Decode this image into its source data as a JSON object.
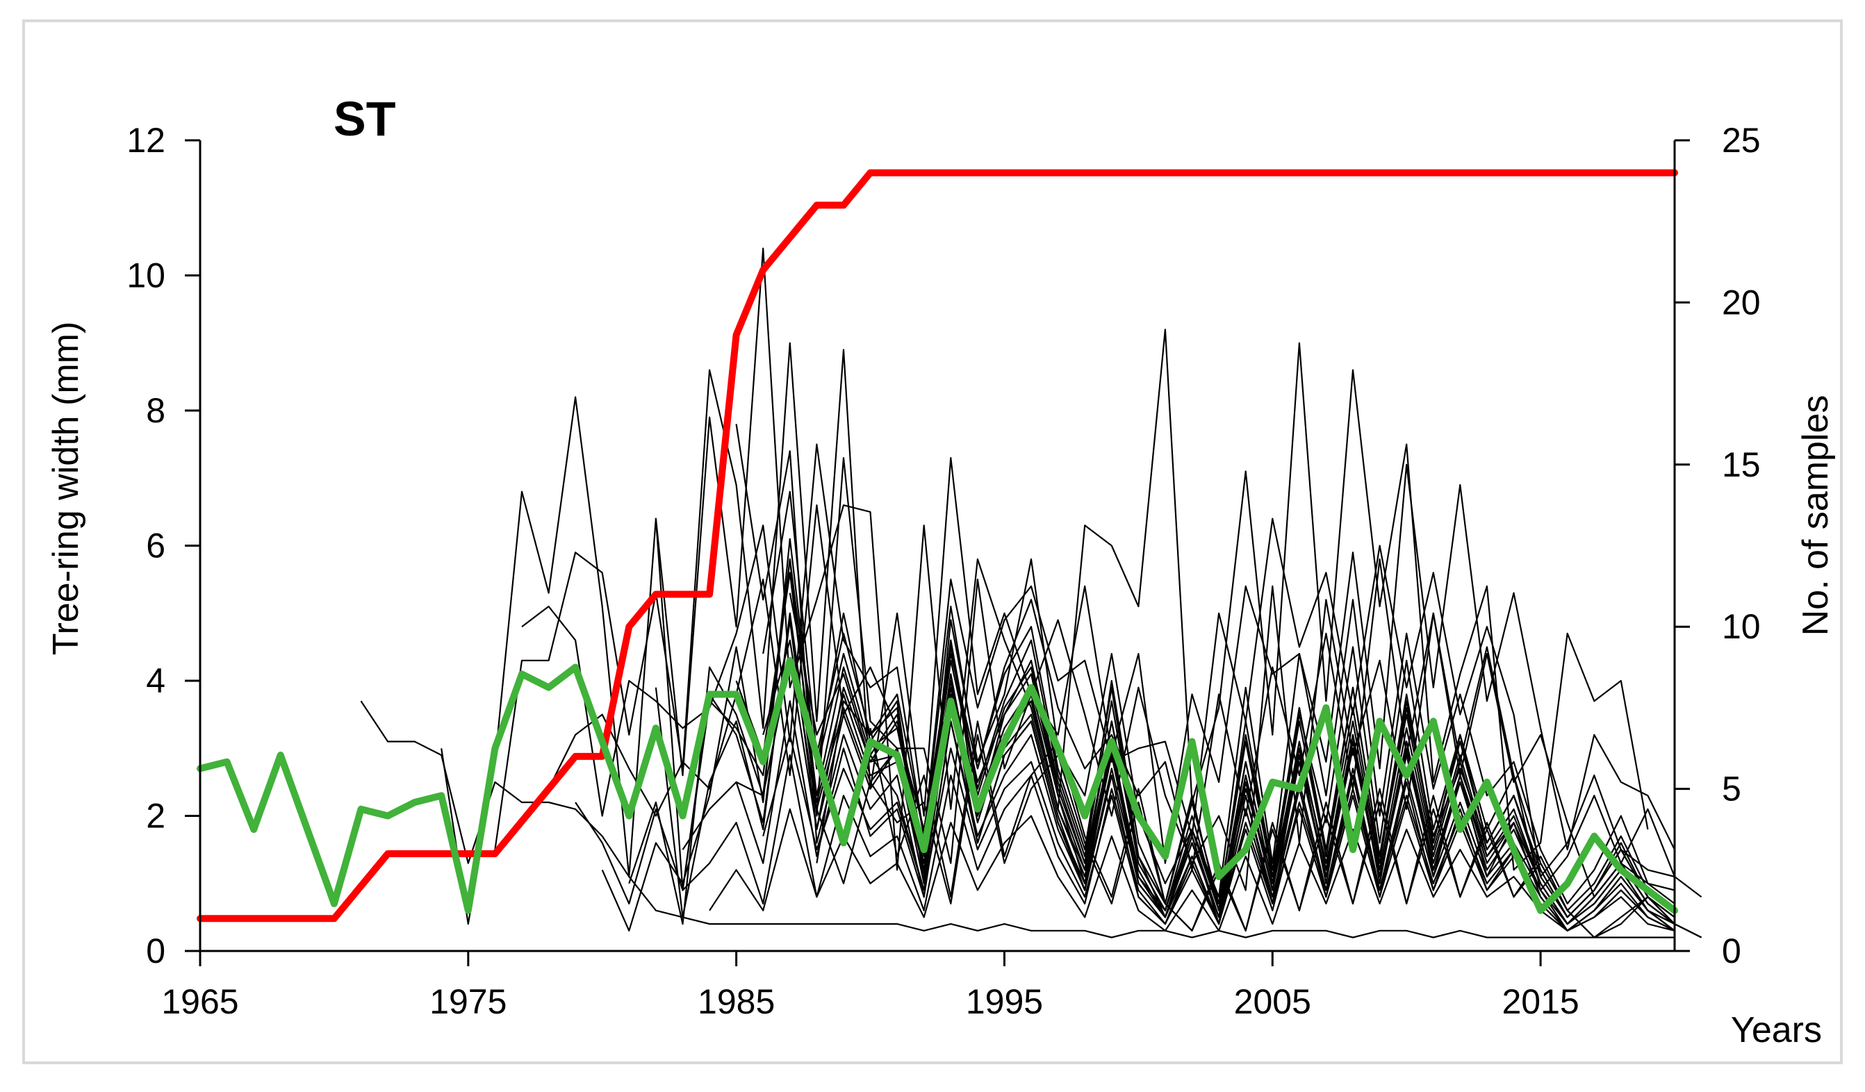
{
  "chart_data": {
    "type": "line",
    "title": "ST",
    "xlabel": "Years",
    "ylabel": "Tree-ring width (mm)",
    "y2label": "No. of samples",
    "xlim": [
      1965,
      2020
    ],
    "ylim": [
      0,
      12
    ],
    "y2lim": [
      0,
      25
    ],
    "x_ticks": [
      1965,
      1975,
      1985,
      1995,
      2005,
      2015
    ],
    "y_ticks": [
      0,
      2,
      4,
      6,
      8,
      10,
      12
    ],
    "y2_ticks": [
      0,
      5,
      10,
      15,
      20,
      25
    ],
    "grid": false,
    "legend": "none",
    "colors": {
      "individual": "#000000",
      "mean": "#41b23a",
      "sample_depth": "#ff0000"
    },
    "series": [
      {
        "role": "sample_depth",
        "axis": "right",
        "start": 1965,
        "values": [
          1,
          1,
          1,
          1,
          1,
          1,
          2,
          3,
          3,
          3,
          3,
          3,
          4,
          5,
          6,
          6,
          10,
          11,
          11,
          11,
          19,
          21,
          22,
          23,
          23,
          24,
          24,
          24,
          24,
          24,
          24,
          24,
          24,
          24,
          24,
          24,
          24,
          24,
          24,
          24,
          24,
          24,
          24,
          24,
          24,
          24,
          24,
          24,
          24,
          24,
          24,
          24,
          24,
          24,
          24,
          24
        ]
      },
      {
        "role": "mean",
        "axis": "left",
        "start": 1965,
        "values": [
          2.7,
          2.8,
          1.8,
          2.9,
          1.8,
          0.7,
          2.1,
          2.0,
          2.2,
          2.3,
          0.6,
          3.0,
          4.1,
          3.9,
          4.2,
          3.1,
          2.0,
          3.3,
          2.0,
          3.8,
          3.8,
          2.8,
          4.3,
          2.9,
          1.6,
          3.1,
          2.9,
          1.5,
          3.7,
          2.1,
          3.1,
          3.9,
          3.0,
          2.0,
          3.1,
          2.0,
          1.4,
          3.1,
          1.1,
          1.5,
          2.5,
          2.4,
          3.6,
          1.5,
          3.4,
          2.6,
          3.4,
          1.8,
          2.5,
          1.5,
          0.6,
          1.0,
          1.7,
          1.2,
          0.9,
          0.6
        ]
      }
    ],
    "individual_series": [
      {
        "start": 1971,
        "values": [
          3.7,
          3.1,
          3.1,
          2.9,
          1.3,
          2.5,
          2.2,
          2.2,
          2.1,
          1.7,
          1.1,
          0.6,
          0.5,
          0.4,
          0.4,
          0.4,
          0.4,
          0.4,
          0.4,
          0.4,
          0.4,
          0.3,
          0.4,
          0.3,
          0.4,
          0.3,
          0.3,
          0.3,
          0.2,
          0.3,
          0.3,
          0.2,
          0.3,
          0.2,
          0.3,
          0.3,
          0.3,
          0.2,
          0.3,
          0.3,
          0.2,
          0.3,
          0.2,
          0.2,
          0.2,
          0.2,
          0.2,
          0.2,
          0.2,
          0.2
        ]
      },
      {
        "start": 1974,
        "values": [
          3.0,
          0.4,
          2.8,
          6.8,
          5.3,
          8.2,
          5.1,
          1.1,
          6.4,
          2.6,
          7.9,
          4.8,
          10.4,
          3.9,
          5.2,
          6.6,
          6.5,
          1.2,
          6.3,
          2.1,
          5.8,
          4.6,
          3.6,
          2.1,
          6.3,
          6.0,
          5.1,
          9.2,
          2.2,
          3.6,
          7.1,
          3.2,
          9.0,
          3.7,
          8.6,
          5.1,
          7.5,
          2.5,
          4.1,
          5.4,
          1.2,
          1.6,
          4.7,
          3.7,
          4.0,
          1.8
        ]
      },
      {
        "start": 1976,
        "values": [
          1.5,
          4.3,
          4.3,
          5.9,
          5.6,
          3.2,
          5.3,
          2.7,
          8.6,
          6.9,
          3.3,
          9.0,
          3.4,
          8.9,
          2.4,
          5.0,
          2.0,
          7.3,
          3.8,
          5.0,
          3.8,
          3.2,
          5.4,
          2.9,
          4.4,
          1.3,
          3.8,
          2.5,
          5.4,
          4.1,
          4.4,
          2.8,
          5.9,
          2.7,
          7.2,
          3.9,
          6.9,
          3.7,
          5.3,
          3.3,
          1.5,
          3.2,
          2.5,
          2.3,
          1.5
        ]
      },
      {
        "start": 1977,
        "values": [
          4.8,
          5.1,
          4.6,
          2.0,
          4.0,
          3.7,
          3.3,
          3.6,
          4.7,
          6.3,
          3.1,
          7.5,
          4.6,
          3.9,
          4.2,
          1.7,
          5.5,
          3.6,
          4.9,
          5.4,
          4.0,
          4.3,
          2.8,
          3.0,
          3.1,
          1.7,
          5.0,
          3.4,
          6.4,
          4.5,
          5.6,
          3.5,
          6.0,
          3.9,
          5.6,
          3.5,
          4.8,
          3.5,
          1.1,
          1.6,
          2.6,
          1.5,
          1.2,
          1.1
        ]
      },
      {
        "start": 1978,
        "values": [
          2.4,
          3.2,
          3.5,
          2.7,
          2.0,
          2.8,
          2.4,
          3.8,
          5.5,
          2.6,
          6.6,
          3.5,
          4.2,
          3.3,
          1.8,
          4.4,
          2.7,
          4.2,
          5.2,
          3.6,
          2.7,
          3.2,
          2.3,
          2.8,
          1.2,
          3.8,
          2.0,
          4.2,
          2.6,
          4.7,
          2.4,
          5.8,
          2.9,
          5.0,
          2.8,
          4.5,
          2.6,
          0.9,
          1.4,
          2.3,
          1.3,
          1.0,
          0.9
        ]
      },
      {
        "start": 1979,
        "values": [
          2.2,
          1.6,
          0.7,
          2.1,
          0.9,
          3.7,
          3.3,
          2.6,
          5.8,
          2.0,
          7.3,
          3.4,
          3.0,
          3.0,
          1.3,
          5.5,
          2.7,
          3.8,
          4.9,
          3.5,
          2.0,
          3.9,
          2.3,
          1.3,
          2.0,
          0.9,
          5.4,
          1.6,
          5.2,
          2.9,
          4.3,
          2.1,
          5.0,
          2.6,
          4.4,
          2.5,
          3.2,
          1.9,
          0.8,
          1.3,
          2.1,
          1.1,
          0.8
        ]
      },
      {
        "start": 1980,
        "values": [
          1.2,
          0.3,
          1.6,
          1.0,
          2.3,
          4.5,
          2.2,
          6.1,
          2.7,
          5.0,
          3.1,
          3.7,
          1.0,
          4.9,
          2.8,
          3.8,
          5.8,
          3.0,
          2.3,
          4.4,
          2.0,
          1.0,
          1.8,
          0.8,
          3.9,
          1.3,
          4.4,
          2.3,
          5.2,
          2.0,
          4.7,
          2.4,
          3.8,
          2.3,
          2.8,
          1.5,
          0.7,
          1.2,
          2.0,
          1.0,
          0.7
        ]
      },
      {
        "start": 1981,
        "values": [
          1.0,
          2.2,
          0.4,
          4.2,
          3.5,
          2.3,
          5.8,
          2.7,
          4.4,
          3.0,
          3.3,
          1.4,
          4.3,
          2.5,
          3.5,
          4.3,
          2.5,
          1.3,
          4.0,
          1.6,
          0.7,
          2.3,
          0.6,
          3.4,
          1.2,
          3.5,
          1.9,
          4.5,
          1.6,
          4.3,
          1.8,
          3.2,
          1.8,
          2.6,
          1.3,
          0.6,
          1.0,
          1.7,
          0.9,
          0.6
        ]
      },
      {
        "start": 1982,
        "values": [
          6.4,
          0.9,
          3.8,
          3.2,
          1.9,
          4.9,
          1.8,
          3.9,
          2.8,
          2.9,
          1.0,
          3.8,
          2.2,
          3.3,
          3.9,
          2.3,
          1.2,
          3.4,
          1.4,
          0.5,
          1.6,
          0.5,
          2.8,
          1.0,
          3.6,
          1.5,
          3.9,
          1.4,
          3.6,
          1.7,
          2.7,
          1.6,
          2.3,
          1.1,
          0.5,
          0.9,
          1.5,
          0.8,
          0.5
        ]
      },
      {
        "start": 1982,
        "values": [
          3.9,
          0.5,
          2.5,
          3.4,
          1.8,
          5.0,
          2.2,
          3.8,
          2.6,
          2.8,
          1.2,
          4.1,
          2.0,
          3.0,
          3.5,
          2.0,
          0.9,
          3.0,
          1.2,
          0.5,
          1.8,
          0.7,
          2.4,
          1.1,
          3.0,
          1.3,
          3.1,
          1.4,
          3.5,
          1.5,
          2.9,
          1.5,
          2.1,
          1.0,
          0.4,
          0.8,
          1.3,
          0.7,
          0.4
        ]
      },
      {
        "start": 1983,
        "values": [
          1.5,
          2.1,
          2.5,
          1.3,
          3.7,
          1.4,
          3.0,
          1.7,
          2.1,
          0.8,
          3.4,
          1.6,
          2.9,
          3.4,
          1.9,
          1.0,
          2.9,
          1.0,
          0.5,
          1.4,
          0.4,
          2.3,
          0.7,
          2.9,
          1.1,
          3.2,
          1.1,
          3.0,
          1.2,
          2.6,
          1.4,
          1.9,
          1.0,
          0.4,
          0.7,
          1.2,
          0.6,
          0.4
        ]
      },
      {
        "start": 1983,
        "values": [
          0.9,
          1.3,
          1.9,
          0.7,
          2.9,
          0.8,
          2.3,
          1.4,
          1.7,
          0.6,
          2.6,
          1.2,
          2.1,
          2.6,
          1.4,
          0.7,
          2.4,
          0.9,
          0.4,
          1.2,
          0.4,
          1.8,
          0.6,
          2.2,
          0.9,
          2.4,
          0.9,
          2.3,
          1.0,
          2.0,
          1.0,
          1.5,
          0.8,
          0.3,
          0.6,
          1.0,
          0.5,
          0.3
        ]
      },
      {
        "start": 1984,
        "values": [
          0.6,
          1.2,
          0.6,
          2.1,
          0.8,
          1.7,
          1.0,
          1.3,
          0.5,
          1.9,
          0.9,
          1.6,
          2.0,
          1.1,
          0.5,
          1.7,
          0.6,
          0.3,
          0.9,
          0.3,
          1.4,
          0.4,
          1.6,
          0.7,
          1.8,
          0.7,
          1.8,
          0.8,
          1.5,
          0.8,
          1.1,
          0.6,
          0.3,
          0.5,
          0.8,
          0.4,
          0.3
        ]
      },
      {
        "start": 1985,
        "values": [
          2.5,
          2.3,
          4.3,
          1.8,
          3.5,
          2.4,
          3.0,
          1.2,
          4.0,
          1.9,
          3.2,
          3.8,
          2.1,
          1.2,
          3.1,
          1.1,
          0.6,
          1.8,
          0.6,
          2.6,
          0.9,
          2.9,
          1.1,
          3.1,
          1.1,
          3.1,
          1.3,
          2.6,
          1.3,
          1.9,
          1.0,
          0.4,
          0.8,
          1.3,
          0.7,
          0.4
        ]
      },
      {
        "start": 1985,
        "values": [
          4.0,
          2.9,
          5.6,
          2.3,
          4.2,
          2.9,
          3.5,
          1.5,
          4.6,
          2.4,
          3.7,
          4.6,
          2.6,
          1.4,
          3.7,
          1.4,
          0.7,
          2.2,
          0.7,
          3.1,
          1.1,
          3.4,
          1.4,
          3.6,
          1.3,
          3.7,
          1.6,
          3.1,
          1.6,
          2.3,
          1.2,
          0.5,
          0.9,
          1.6,
          0.8,
          0.5
        ]
      },
      {
        "start": 1985,
        "values": [
          7.8,
          5.2,
          7.4,
          1.6,
          3.2,
          2.1,
          2.6,
          0.8,
          3.4,
          1.7,
          2.6,
          3.2,
          1.8,
          0.9,
          2.7,
          1.0,
          0.5,
          1.6,
          0.5,
          2.3,
          0.8,
          2.5,
          0.9,
          2.7,
          0.9,
          2.6,
          1.1,
          2.2,
          1.1,
          1.6,
          0.9,
          0.3,
          0.6,
          1.1,
          0.6,
          0.3
        ]
      },
      {
        "start": 1986,
        "values": [
          1.7,
          3.2,
          1.5,
          2.7,
          1.8,
          2.2,
          0.9,
          3.0,
          1.5,
          2.4,
          2.8,
          1.6,
          0.8,
          2.3,
          0.8,
          0.4,
          1.3,
          0.4,
          1.9,
          0.7,
          2.1,
          0.8,
          2.3,
          0.8,
          2.2,
          0.9,
          1.9,
          0.9,
          1.4,
          0.7,
          0.3,
          0.5,
          0.9,
          0.5,
          0.3
        ]
      },
      {
        "start": 1986,
        "values": [
          3.2,
          4.6,
          2.1,
          3.6,
          2.5,
          3.0,
          1.3,
          3.9,
          2.0,
          3.2,
          3.7,
          2.1,
          1.1,
          3.0,
          1.1,
          0.5,
          1.7,
          0.5,
          2.5,
          0.9,
          2.8,
          1.1,
          3.0,
          1.1,
          2.9,
          1.2,
          2.5,
          1.2,
          1.8,
          0.9,
          0.4,
          0.7,
          1.2,
          0.6,
          0.4
        ]
      },
      {
        "start": 1986,
        "values": [
          4.4,
          6.8,
          2.9,
          4.7,
          3.2,
          3.8,
          1.7,
          5.1,
          2.7,
          4.1,
          4.8,
          2.7,
          1.5,
          3.9,
          1.4,
          0.7,
          2.2,
          0.7,
          3.2,
          1.2,
          3.6,
          1.4,
          3.9,
          1.4,
          3.8,
          1.6,
          3.2,
          1.6,
          2.3,
          1.2,
          0.5,
          0.9,
          1.5,
          0.8,
          0.5
        ]
      },
      {
        "start": 1987,
        "values": [
          5.3,
          3.2,
          4.1,
          2.8,
          3.4,
          1.5,
          4.5,
          2.3,
          3.6,
          4.2,
          2.4,
          1.3,
          3.4,
          1.3,
          0.6,
          2.0,
          0.6,
          2.8,
          1.0,
          3.1,
          1.2,
          3.4,
          1.2,
          3.3,
          1.4,
          2.8,
          1.4,
          2.0,
          1.0,
          0.4,
          0.8,
          1.3,
          0.7,
          0.4
        ]
      },
      {
        "start": 1988,
        "values": [
          1.3,
          3.7,
          3.2,
          3.6,
          1.1,
          4.6,
          2.0,
          3.5,
          4.1,
          2.3,
          1.0,
          3.1,
          1.0,
          0.5,
          1.7,
          0.4,
          2.6,
          0.9,
          3.0,
          1.0,
          3.2,
          1.0,
          3.1,
          1.1,
          2.6,
          1.1,
          1.9,
          0.8,
          0.3,
          0.6,
          1.1,
          0.6,
          0.3
        ]
      },
      {
        "start": 1988,
        "values": [
          2.1,
          1.0,
          2.5,
          1.9,
          2.2,
          0.7,
          3.2,
          1.3,
          2.4,
          2.9,
          1.6,
          0.7,
          2.2,
          0.7,
          0.3,
          1.2,
          0.3,
          1.8,
          0.6,
          2.0,
          0.7,
          2.2,
          0.7,
          2.1,
          0.8,
          1.8,
          0.8,
          1.3,
          0.6,
          0.2,
          0.4,
          0.8,
          0.4,
          0.2
        ]
      },
      {
        "start": 1989,
        "values": [
          1.6,
          2.9,
          2.3,
          0.9,
          3.8,
          1.6,
          2.9,
          3.4,
          1.9,
          0.9,
          2.6,
          0.8,
          0.4,
          1.4,
          0.4,
          2.1,
          0.7,
          2.4,
          0.8,
          2.6,
          0.8,
          2.5,
          0.9,
          2.1,
          0.9,
          1.5,
          0.7,
          0.3,
          0.5,
          0.9,
          0.5,
          0.3
        ]
      },
      {
        "start": 1990,
        "values": [
          3.3,
          1.4,
          2.6,
          0.8,
          3.4,
          1.4,
          2.6,
          3.1,
          1.7,
          0.8,
          2.4,
          0.7,
          0.3,
          1.3,
          0.3,
          1.9,
          0.6,
          2.2,
          0.7,
          2.4,
          0.7,
          2.3,
          0.8,
          1.9,
          0.8,
          1.4,
          0.6,
          0.2,
          0.5,
          0.8,
          0.4,
          0.2
        ]
      }
    ]
  }
}
